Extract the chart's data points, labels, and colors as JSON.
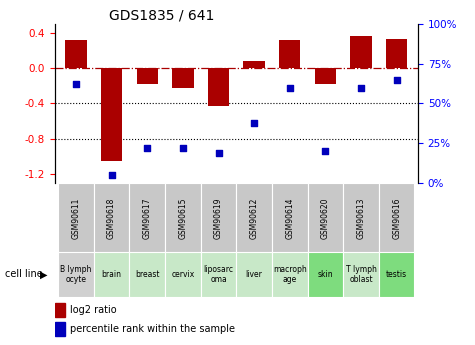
{
  "title": "GDS1835 / 641",
  "samples": [
    "GSM90611",
    "GSM90618",
    "GSM90617",
    "GSM90615",
    "GSM90619",
    "GSM90612",
    "GSM90614",
    "GSM90620",
    "GSM90613",
    "GSM90616"
  ],
  "cell_lines": [
    "B lymph\nocyte",
    "brain",
    "breast",
    "cervix",
    "liposarc\noma",
    "liver",
    "macroph\nage",
    "skin",
    "T lymph\noblast",
    "testis"
  ],
  "log2_ratio": [
    0.32,
    -1.05,
    -0.18,
    -0.22,
    -0.43,
    0.08,
    0.32,
    -0.18,
    0.36,
    0.33
  ],
  "percentile_rank": [
    62,
    5,
    22,
    22,
    19,
    38,
    60,
    20,
    60,
    65
  ],
  "bar_color": "#aa0000",
  "dot_color": "#0000bb",
  "ylim_left": [
    -1.3,
    0.5
  ],
  "ylim_right": [
    0,
    100
  ],
  "right_ticks": [
    0,
    25,
    50,
    75,
    100
  ],
  "left_ticks": [
    -1.2,
    -0.8,
    -0.4,
    0.0,
    0.4
  ],
  "dotted_lines": [
    -0.4,
    -0.8
  ],
  "cell_line_bg_colors": [
    "#d0d0d0",
    "#c8e8c8",
    "#c8e8c8",
    "#c8e8c8",
    "#c8e8c8",
    "#c8e8c8",
    "#c8e8c8",
    "#7edc7e",
    "#c8e8c8",
    "#7edc7e"
  ],
  "sample_bg_colors": [
    "#c8c8c8",
    "#c8c8c8",
    "#c8c8c8",
    "#c8c8c8",
    "#c8c8c8",
    "#c8c8c8",
    "#c8c8c8",
    "#c8c8c8",
    "#c8c8c8",
    "#c8c8c8"
  ]
}
